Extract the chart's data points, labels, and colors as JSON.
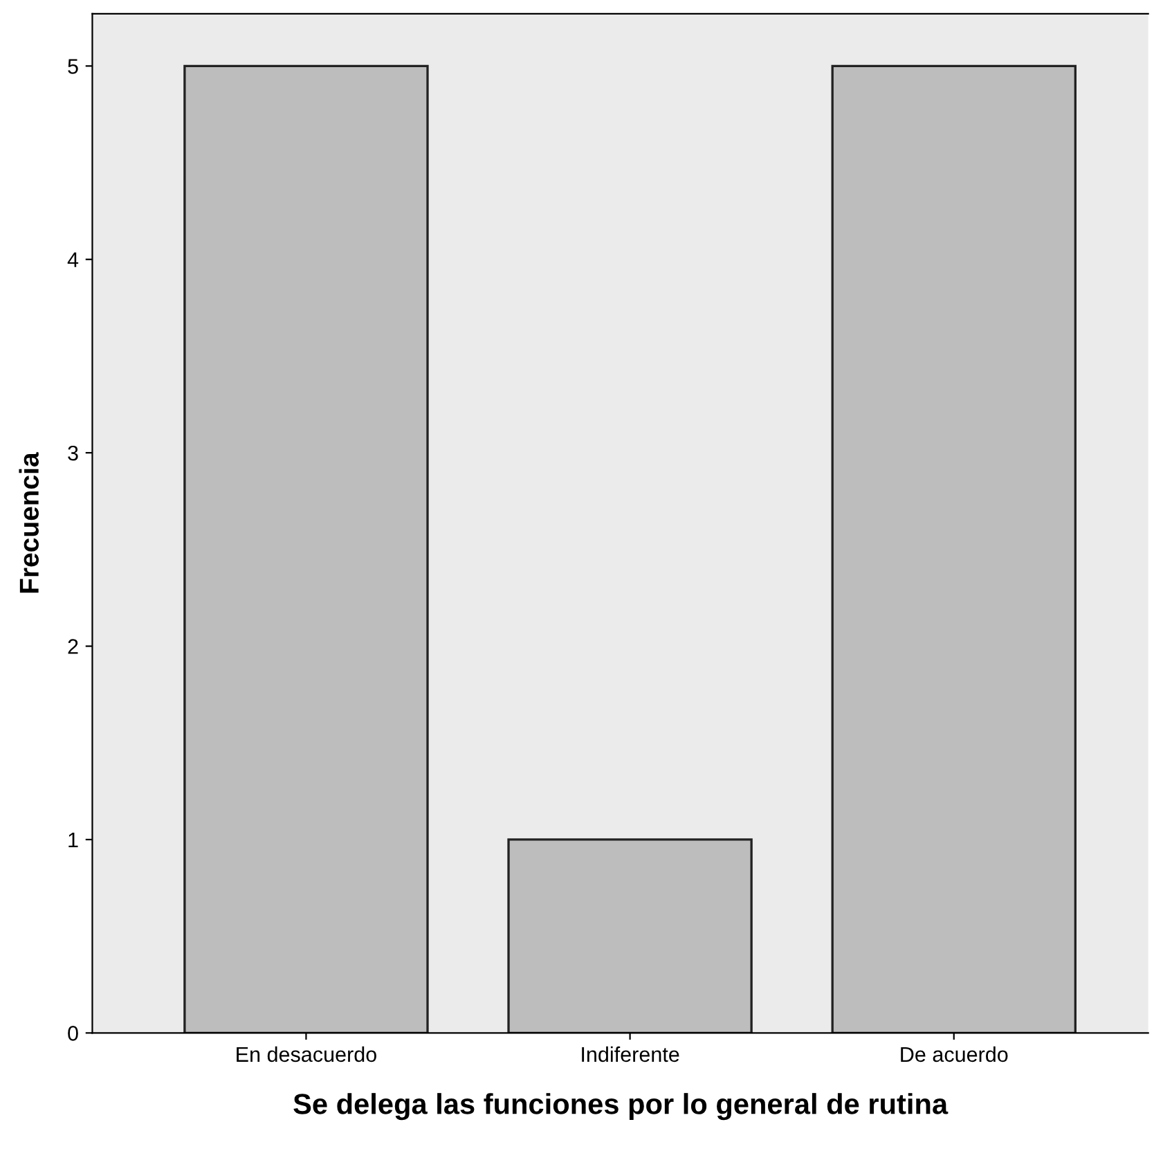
{
  "chart_data": {
    "type": "bar",
    "xlabel": "Se delega las funciones por lo general de rutina",
    "ylabel": "Frecuencia",
    "categories": [
      "En desacuerdo",
      "Indiferente",
      "De acuerdo"
    ],
    "values": [
      5,
      1,
      5
    ],
    "color": "#bdbdbd",
    "ylim": [
      0,
      5.27
    ],
    "yticks": [
      0,
      1,
      2,
      3,
      4,
      5
    ],
    "grid": false,
    "legend": false
  }
}
